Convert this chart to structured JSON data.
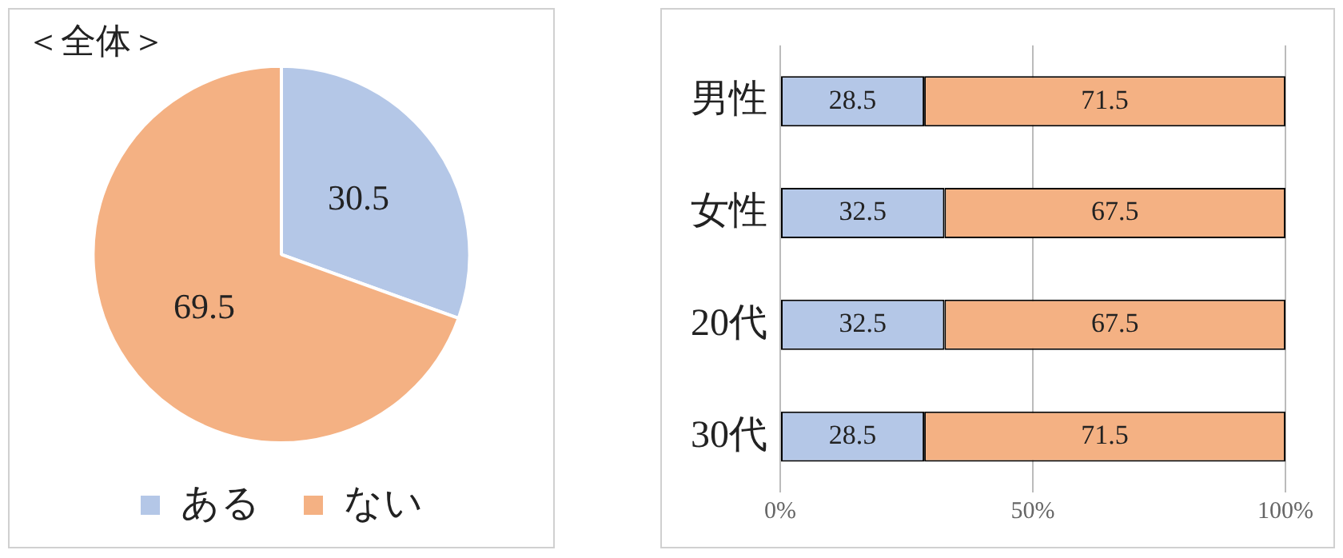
{
  "chart_data": [
    {
      "type": "pie",
      "title": "＜全体＞",
      "categories": [
        "ある",
        "ない"
      ],
      "values": [
        30.5,
        69.5
      ],
      "colors": [
        "#b4c7e7",
        "#f4b183"
      ],
      "data_labels": true,
      "legend": "bottom"
    },
    {
      "type": "bar",
      "orientation": "horizontal",
      "stacked": true,
      "categories": [
        "男性",
        "女性",
        "20代",
        "30代"
      ],
      "series": [
        {
          "color": "#b4c7e7",
          "values": [
            28.5,
            32.5,
            32.5,
            28.5
          ]
        },
        {
          "color": "#f4b183",
          "values": [
            71.5,
            67.5,
            67.5,
            71.5
          ]
        }
      ],
      "xlim": [
        0,
        100
      ],
      "xticks": [
        {
          "value": 0,
          "label": "0%"
        },
        {
          "value": 50,
          "label": "50%"
        },
        {
          "value": 100,
          "label": "100%"
        }
      ],
      "grid": "x",
      "data_labels": true,
      "legend": false
    }
  ]
}
